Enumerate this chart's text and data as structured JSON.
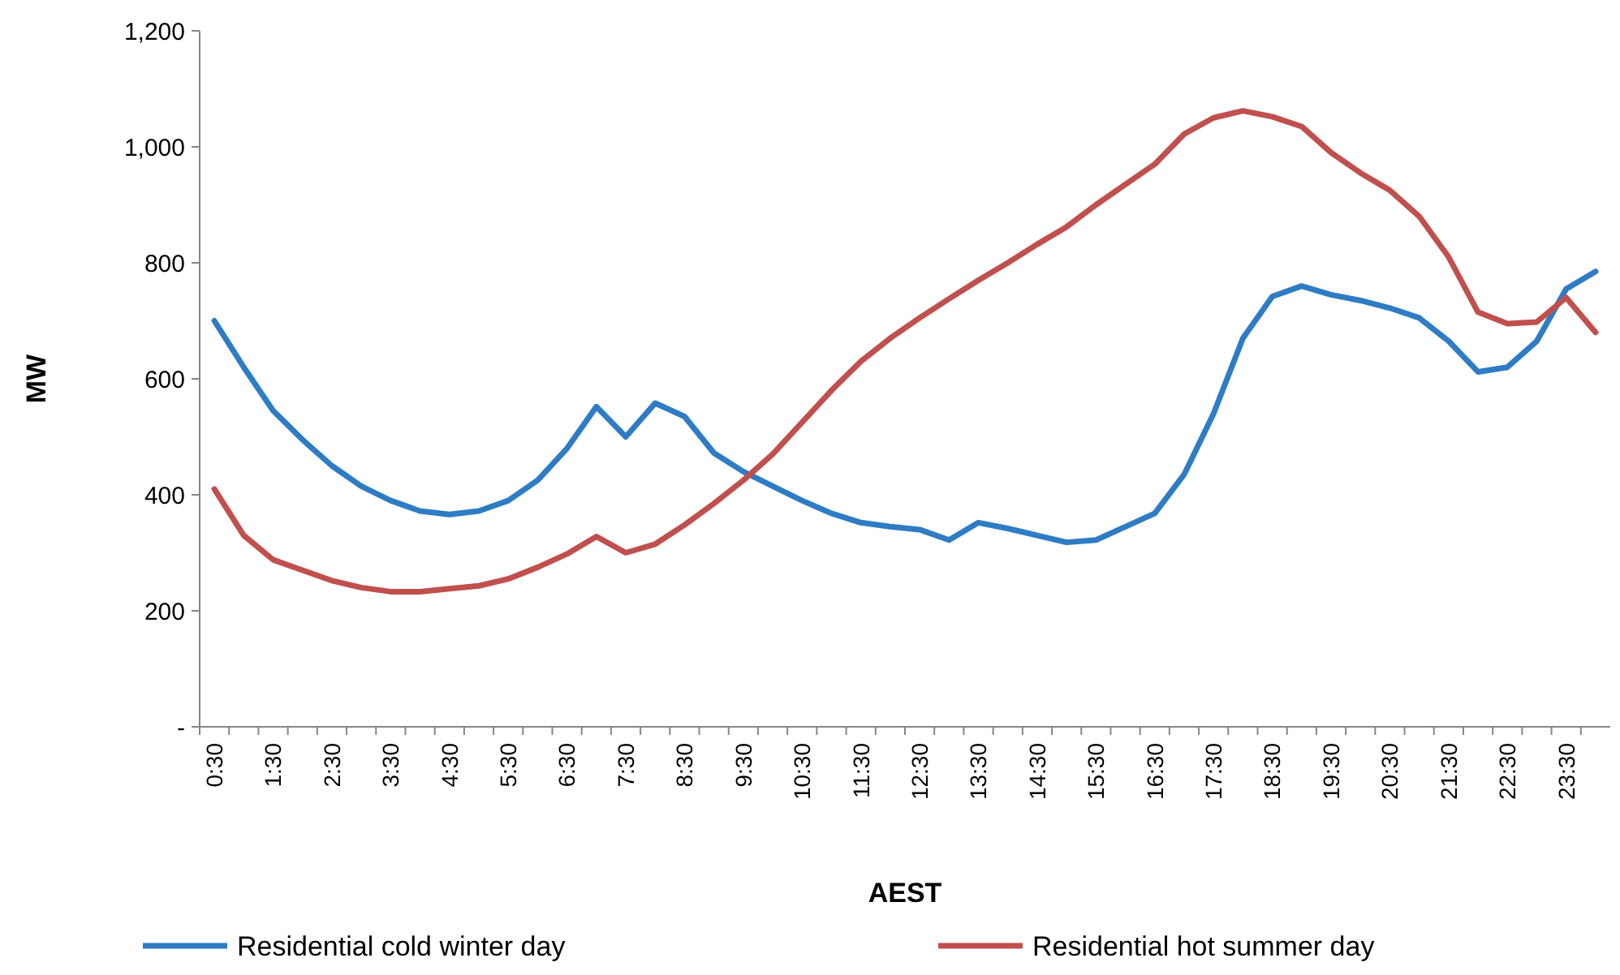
{
  "chart_data": {
    "type": "line",
    "xlabel": "AEST",
    "ylabel": "MW",
    "categories": [
      "0:30",
      null,
      "1:30",
      null,
      "2:30",
      null,
      "3:30",
      null,
      "4:30",
      null,
      "5:30",
      null,
      "6:30",
      null,
      "7:30",
      null,
      "8:30",
      null,
      "9:30",
      null,
      "10:30",
      null,
      "11:30",
      null,
      "12:30",
      null,
      "13:30",
      null,
      "14:30",
      null,
      "15:30",
      null,
      "16:30",
      null,
      "17:30",
      null,
      "18:30",
      null,
      "19:30",
      null,
      "20:30",
      null,
      "21:30",
      null,
      "22:30",
      null,
      "23:30",
      null
    ],
    "series": [
      {
        "name": "Residential cold winter day",
        "color": "#2e7cc4",
        "values": [
          700,
          620,
          545,
          495,
          450,
          415,
          390,
          372,
          366,
          372,
          390,
          425,
          480,
          552,
          500,
          558,
          535,
          472,
          440,
          415,
          390,
          368,
          352,
          345,
          340,
          322,
          352,
          342,
          330,
          318,
          322,
          345,
          368,
          435,
          540,
          670,
          742,
          760,
          745,
          735,
          722,
          705,
          665,
          612,
          620,
          665,
          755,
          785
        ]
      },
      {
        "name": "Residential hot summer day",
        "color": "#c0504d",
        "values": [
          410,
          330,
          288,
          270,
          252,
          240,
          233,
          233,
          238,
          243,
          255,
          275,
          298,
          328,
          300,
          315,
          348,
          385,
          425,
          470,
          525,
          580,
          630,
          670,
          705,
          738,
          770,
          800,
          832,
          862,
          900,
          935,
          970,
          1022,
          1050,
          1062,
          1052,
          1035,
          990,
          955,
          925,
          880,
          810,
          715,
          695,
          698,
          740,
          680
        ]
      }
    ],
    "ylim": [
      0,
      1200
    ],
    "yticks": [
      {
        "value": 0,
        "label": "-"
      },
      200,
      400,
      600,
      800,
      {
        "value": 1000,
        "label": "1,000"
      },
      {
        "value": 1200,
        "label": "1,200"
      }
    ],
    "grid": false,
    "legend": "bottom",
    "marker": "none",
    "line_style": "solid"
  }
}
